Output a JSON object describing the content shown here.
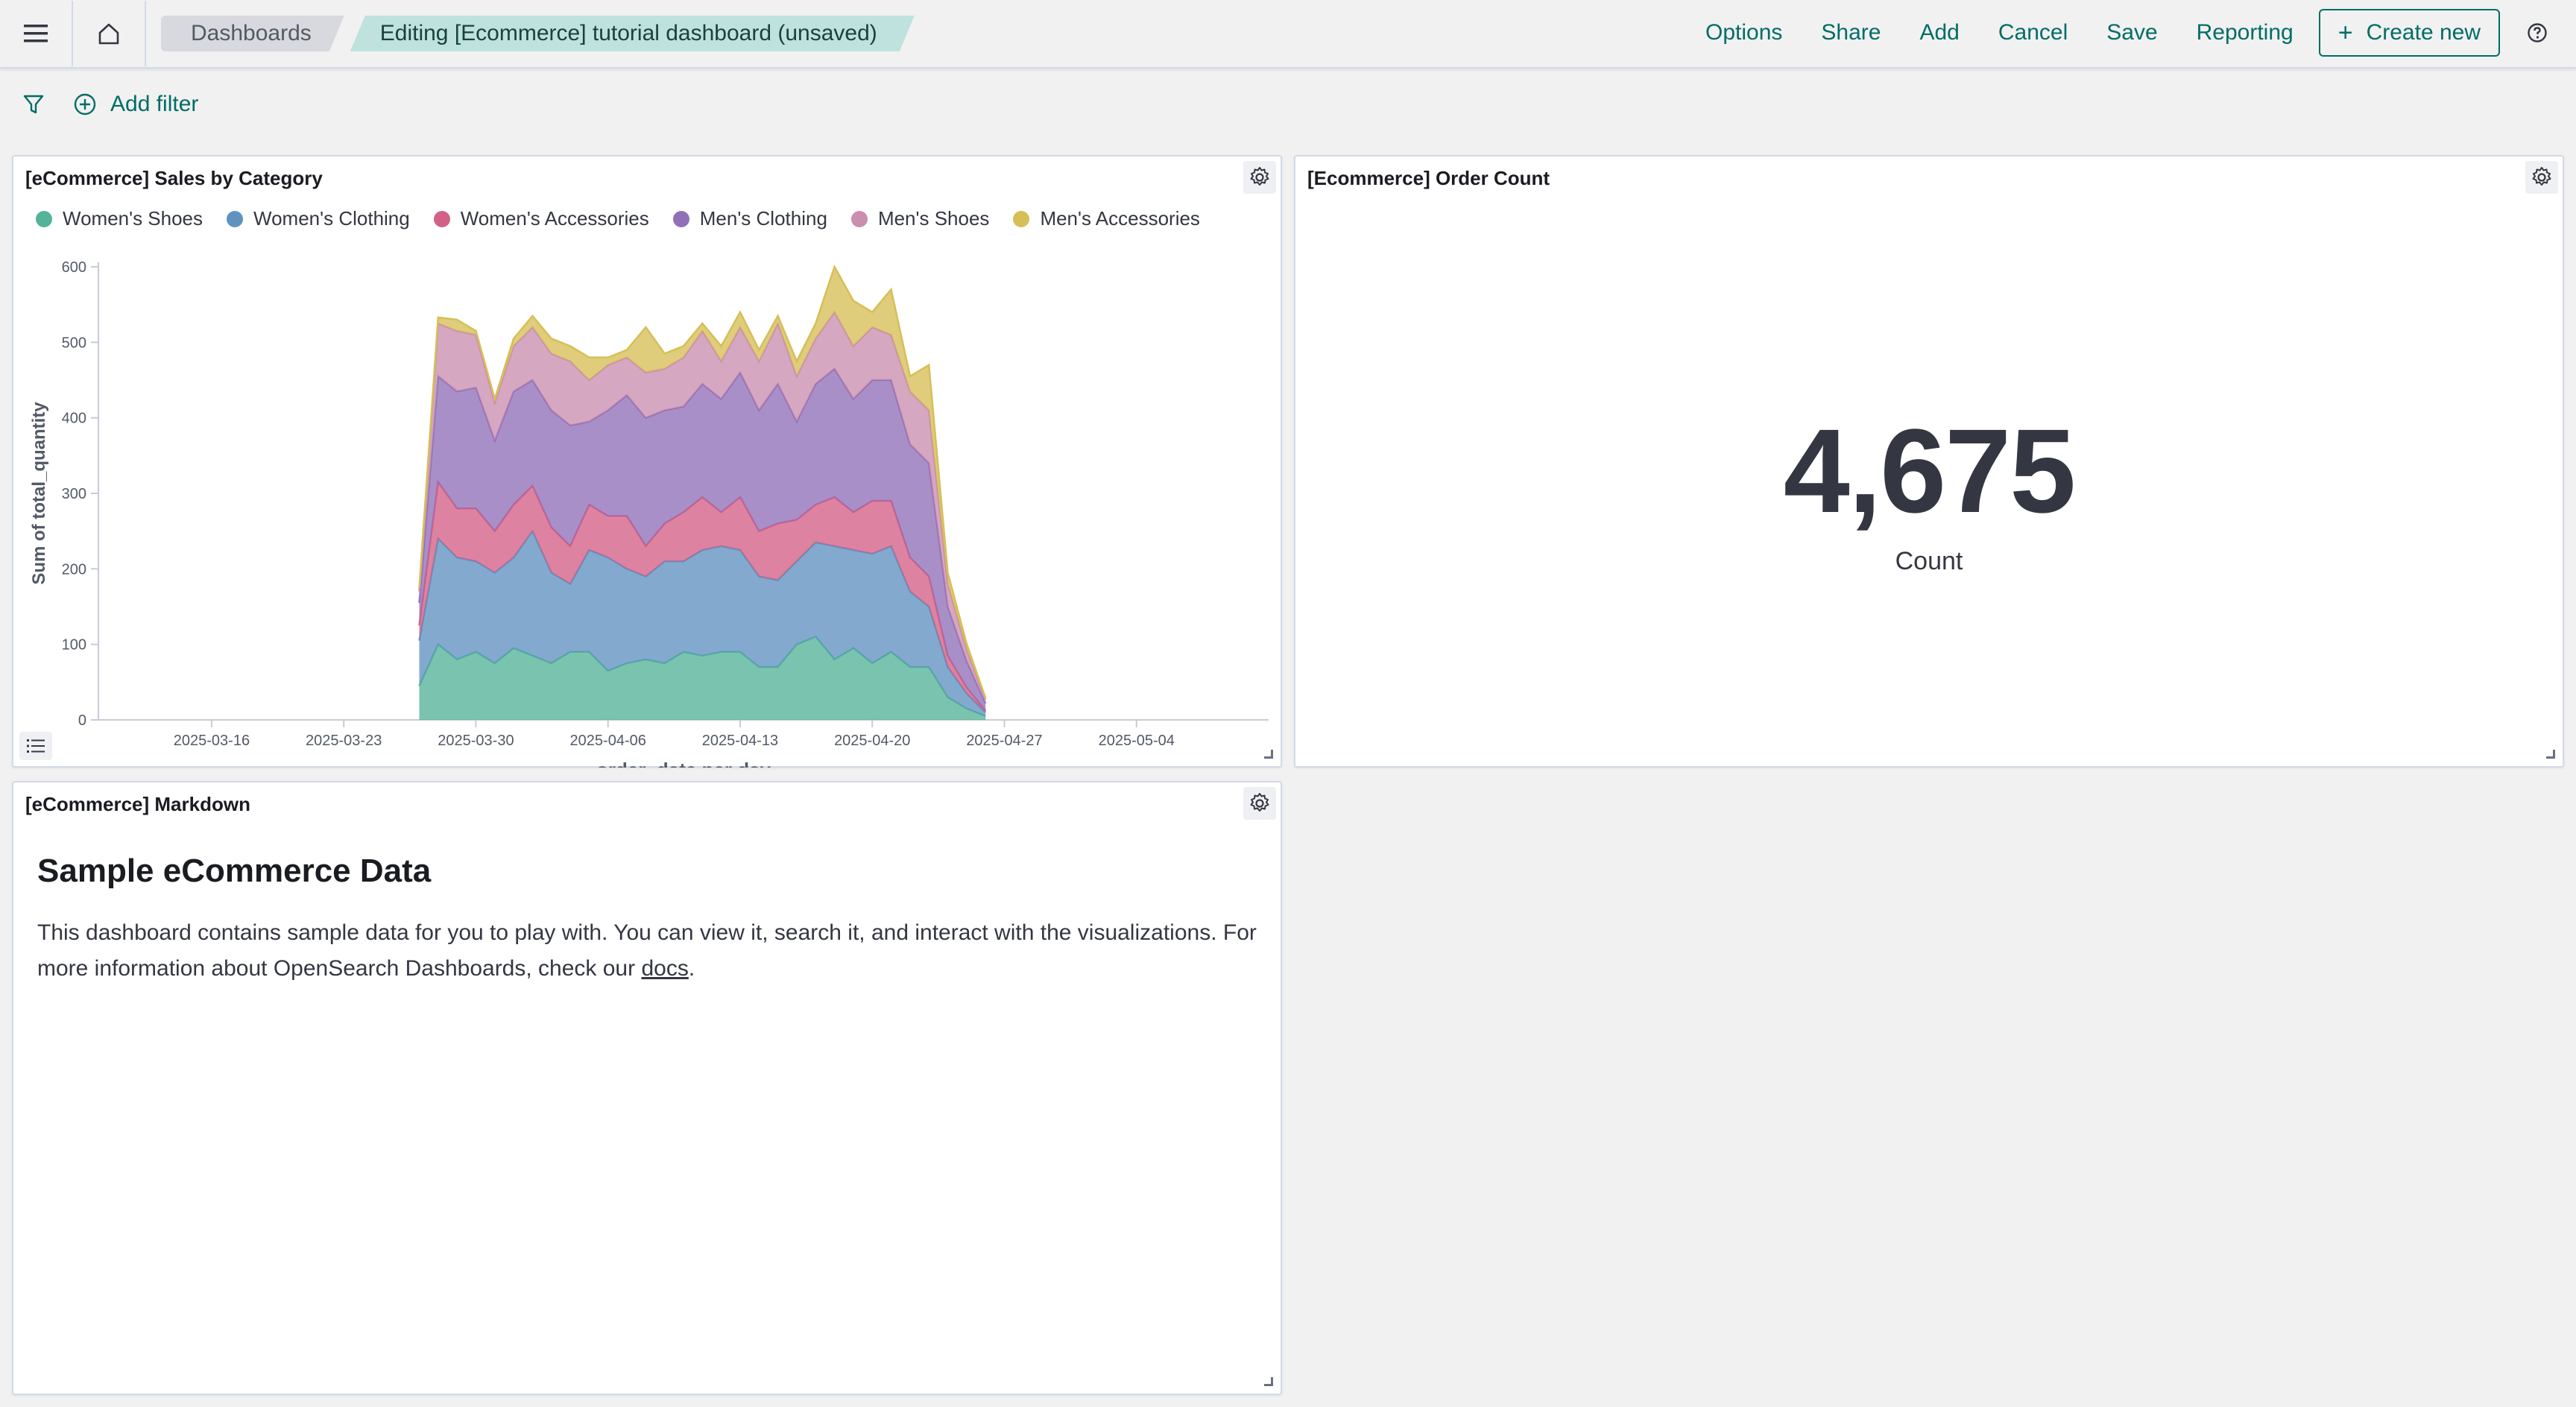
{
  "header": {
    "breadcrumbs": [
      "Dashboards",
      "Editing [Ecommerce] tutorial dashboard (unsaved)"
    ],
    "menu": [
      "Options",
      "Share",
      "Add",
      "Cancel",
      "Save",
      "Reporting"
    ],
    "create_new_label": "Create new",
    "accent": "#006d64"
  },
  "filterbar": {
    "add_filter_label": "Add filter"
  },
  "sales_panel": {
    "title": "[eCommerce] Sales by Category"
  },
  "order_panel": {
    "title": "[Ecommerce] Order Count",
    "value": "4,675",
    "label": "Count"
  },
  "markdown_panel": {
    "title": "[eCommerce] Markdown",
    "heading": "Sample eCommerce Data",
    "body_before_link": "This dashboard contains sample data for you to play with. You can view it, search it, and interact with the visualizations. For more information about OpenSearch Dashboards, check our ",
    "link_text": "docs",
    "body_after_link": "."
  },
  "chart_data": {
    "type": "area",
    "stacked": true,
    "xlabel": "order_date per day",
    "ylabel": "Sum of total_quantity",
    "ylim": [
      0,
      600
    ],
    "yticks": [
      0,
      100,
      200,
      300,
      400,
      500,
      600
    ],
    "xlim": [
      "2025-03-10",
      "2025-05-11"
    ],
    "xtick_labels": [
      "2025-03-16",
      "2025-03-23",
      "2025-03-30",
      "2025-04-06",
      "2025-04-13",
      "2025-04-20",
      "2025-04-27",
      "2025-05-04"
    ],
    "legend_position": "top-left",
    "grid": false,
    "x": [
      "2025-03-27",
      "2025-03-28",
      "2025-03-29",
      "2025-03-30",
      "2025-03-31",
      "2025-04-01",
      "2025-04-02",
      "2025-04-03",
      "2025-04-04",
      "2025-04-05",
      "2025-04-06",
      "2025-04-07",
      "2025-04-08",
      "2025-04-09",
      "2025-04-10",
      "2025-04-11",
      "2025-04-12",
      "2025-04-13",
      "2025-04-14",
      "2025-04-15",
      "2025-04-16",
      "2025-04-17",
      "2025-04-18",
      "2025-04-19",
      "2025-04-20",
      "2025-04-21",
      "2025-04-22",
      "2025-04-23",
      "2025-04-24",
      "2025-04-25",
      "2025-04-26"
    ],
    "series": [
      {
        "name": "Women's Shoes",
        "color": "#54b399",
        "values": [
          45,
          100,
          80,
          90,
          75,
          95,
          85,
          75,
          90,
          90,
          65,
          75,
          80,
          75,
          90,
          85,
          90,
          90,
          70,
          70,
          100,
          110,
          80,
          95,
          75,
          90,
          70,
          70,
          30,
          15,
          5
        ]
      },
      {
        "name": "Women's Clothing",
        "color": "#6092c0",
        "values": [
          60,
          140,
          135,
          120,
          120,
          120,
          165,
          120,
          90,
          135,
          150,
          125,
          110,
          135,
          120,
          140,
          140,
          135,
          120,
          115,
          110,
          125,
          150,
          130,
          145,
          140,
          100,
          80,
          40,
          20,
          5
        ]
      },
      {
        "name": "Women's Accessories",
        "color": "#d36086",
        "values": [
          20,
          75,
          65,
          70,
          55,
          70,
          60,
          60,
          50,
          60,
          55,
          70,
          40,
          50,
          65,
          70,
          45,
          70,
          60,
          75,
          55,
          50,
          65,
          50,
          70,
          60,
          45,
          40,
          15,
          8,
          2
        ]
      },
      {
        "name": "Men's Clothing",
        "color": "#9170b8",
        "values": [
          30,
          140,
          155,
          160,
          120,
          150,
          140,
          155,
          160,
          110,
          140,
          160,
          170,
          150,
          140,
          150,
          150,
          165,
          160,
          185,
          130,
          160,
          170,
          150,
          160,
          160,
          150,
          150,
          65,
          35,
          10
        ]
      },
      {
        "name": "Men's Shoes",
        "color": "#ca8eae",
        "values": [
          15,
          70,
          80,
          70,
          50,
          60,
          70,
          75,
          85,
          55,
          60,
          50,
          60,
          55,
          65,
          70,
          50,
          60,
          65,
          80,
          60,
          60,
          75,
          70,
          70,
          60,
          70,
          70,
          30,
          15,
          5
        ]
      },
      {
        "name": "Men's Accessories",
        "color": "#d6bf57",
        "values": [
          5,
          8,
          15,
          5,
          5,
          10,
          15,
          20,
          20,
          30,
          10,
          10,
          60,
          20,
          15,
          10,
          20,
          20,
          15,
          10,
          20,
          20,
          60,
          60,
          20,
          60,
          20,
          60,
          15,
          8,
          2
        ]
      }
    ]
  }
}
